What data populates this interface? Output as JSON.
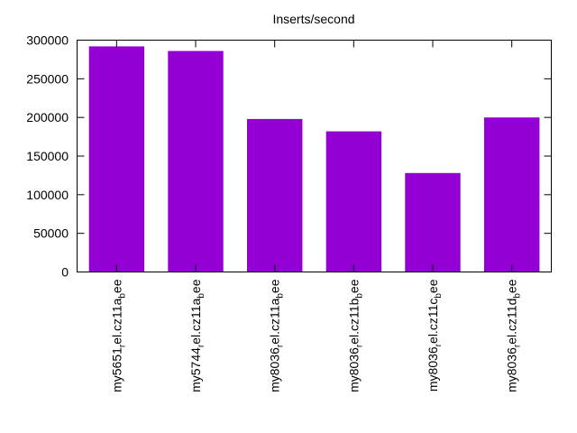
{
  "chart_data": {
    "type": "bar",
    "title": "Inserts/second",
    "xlabel": "",
    "ylabel": "",
    "categories": [
      {
        "base": "my5651",
        "sub1": "r",
        "mid": "el.cz11a",
        "sub2": "b",
        "end": "ee"
      },
      {
        "base": "my5744",
        "sub1": "r",
        "mid": "el.cz11a",
        "sub2": "b",
        "end": "ee"
      },
      {
        "base": "my8036",
        "sub1": "r",
        "mid": "el.cz11a",
        "sub2": "b",
        "end": "ee"
      },
      {
        "base": "my8036",
        "sub1": "r",
        "mid": "el.cz11b",
        "sub2": "b",
        "end": "ee"
      },
      {
        "base": "my8036",
        "sub1": "r",
        "mid": "el.cz11c",
        "sub2": "b",
        "end": "ee"
      },
      {
        "base": "my8036",
        "sub1": "r",
        "mid": "el.cz11d",
        "sub2": "b",
        "end": "ee"
      }
    ],
    "values": [
      292000,
      286000,
      198000,
      182000,
      128000,
      200000
    ],
    "ylim": [
      0,
      300000
    ],
    "yticks": [
      "0",
      "50000",
      "100000",
      "150000",
      "200000",
      "250000",
      "300000"
    ],
    "ytick_values": [
      0,
      50000,
      100000,
      150000,
      200000,
      250000,
      300000
    ],
    "bar_color": "#9400d3",
    "grid": false,
    "legend": "none"
  }
}
